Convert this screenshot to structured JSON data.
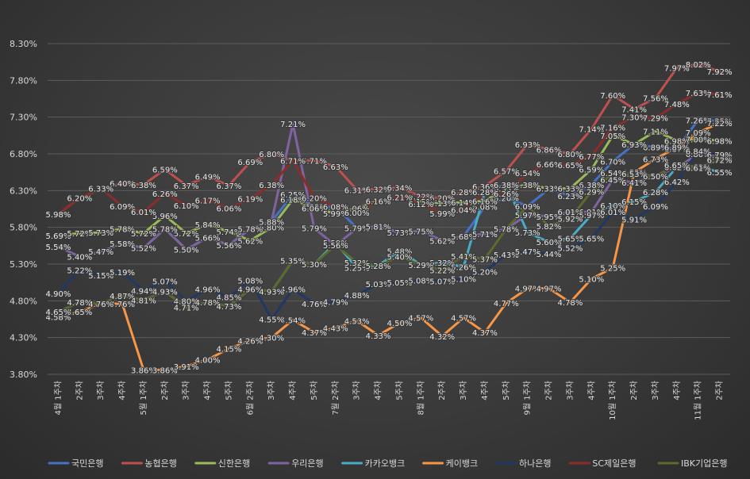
{
  "chart_data": {
    "type": "line",
    "title": "",
    "xlabel": "",
    "ylabel": "",
    "ylim": [
      3.8,
      8.3
    ],
    "yticks": [
      "8.30%",
      "7.80%",
      "7.30%",
      "6.80%",
      "6.30%",
      "5.80%",
      "5.30%",
      "4.80%",
      "4.30%",
      "3.80%"
    ],
    "grid": true,
    "legend_position": "bottom",
    "categories": [
      "4월 1주차",
      "2주차",
      "3주차",
      "4주차",
      "5월 1주차",
      "2주차",
      "3주차",
      "4주차",
      "5주차",
      "6월 2주차",
      "3주차",
      "4주차",
      "5주차",
      "7월 2주차",
      "3주차",
      "4주차",
      "5주차",
      "8월 1주차",
      "2주차",
      "3주차",
      "4주차",
      "5주차",
      "9월 1주차",
      "2주차",
      "3주차",
      "4주차",
      "10월 1주차",
      "2주차",
      "3주차",
      "4주차",
      "11월 1주차",
      "2주차"
    ],
    "series": [
      {
        "name": "국민은행",
        "color": "#4472c4",
        "values": [
          5.54,
          5.4,
          5.47,
          5.58,
          5.52,
          5.78,
          5.5,
          5.66,
          5.56,
          5.78,
          5.88,
          6.25,
          6.08,
          6.08,
          5.79,
          5.81,
          5.73,
          5.75,
          5.62,
          5.68,
          6.08,
          6.2,
          6.09,
          6.32,
          6.23,
          6.38,
          6.7,
          6.93,
          6.89,
          6.87,
          7.26,
          7.25
        ]
      },
      {
        "name": "농협은행",
        "color": "#c0504d",
        "values": [
          5.98,
          6.2,
          6.32,
          6.4,
          6.38,
          6.59,
          6.37,
          6.49,
          6.37,
          6.69,
          6.8,
          6.71,
          6.71,
          6.63,
          6.31,
          6.32,
          6.34,
          6.22,
          6.2,
          6.28,
          6.36,
          6.57,
          6.93,
          6.86,
          6.8,
          7.14,
          7.6,
          7.41,
          7.56,
          7.97,
          8.02,
          7.92
        ]
      },
      {
        "name": "신한은행",
        "color": "#9bbb59",
        "values": [
          5.69,
          5.72,
          5.73,
          5.78,
          5.72,
          5.96,
          5.72,
          5.84,
          5.74,
          5.62,
          5.8,
          6.18,
          6.06,
          5.99,
          6.06,
          6.16,
          6.21,
          6.15,
          6.13,
          6.14,
          6.16,
          6.33,
          6.38,
          6.33,
          6.33,
          6.59,
          7.05,
          6.93,
          7.11,
          6.98,
          7.0,
          6.98
        ]
      },
      {
        "name": "우리은행",
        "color": "#8064a2",
        "values": [
          5.54,
          5.4,
          5.47,
          5.58,
          5.52,
          5.78,
          5.5,
          5.66,
          5.56,
          5.78,
          5.88,
          7.21,
          5.79,
          5.55,
          5.79,
          5.81,
          5.73,
          5.75,
          5.62,
          5.68,
          5.71,
          5.78,
          5.97,
          5.95,
          6.01,
          6.01,
          6.45,
          6.41,
          6.5,
          6.61,
          6.8,
          6.76
        ]
      },
      {
        "name": "카카오뱅크",
        "color": "#4bacc6",
        "values": [
          4.65,
          4.78,
          4.76,
          4.87,
          4.81,
          4.93,
          4.71,
          4.78,
          4.73,
          4.96,
          4.93,
          5.35,
          5.3,
          5.59,
          5.25,
          5.28,
          5.48,
          5.29,
          5.32,
          5.26,
          6.28,
          6.38,
          5.73,
          5.6,
          5.65,
          5.97,
          6.1,
          6.15,
          6.28,
          6.62,
          6.63,
          6.55
        ]
      },
      {
        "name": "케이뱅크",
        "color": "#f79646",
        "values": [
          4.58,
          4.65,
          4.76,
          4.76,
          3.86,
          3.86,
          3.91,
          4.0,
          4.15,
          4.26,
          4.3,
          4.54,
          4.37,
          4.43,
          4.53,
          4.33,
          4.5,
          4.57,
          4.32,
          4.57,
          4.37,
          4.77,
          4.97,
          4.97,
          4.78,
          5.1,
          5.25,
          6.55,
          6.73,
          6.89,
          7.09,
          7.22
        ]
      },
      {
        "name": "하나은행",
        "color": "#1f3864",
        "values": [
          4.9,
          5.22,
          5.15,
          5.19,
          4.94,
          5.07,
          4.8,
          4.96,
          4.85,
          5.08,
          4.55,
          4.96,
          4.76,
          4.79,
          4.88,
          5.03,
          5.05,
          5.08,
          5.07,
          5.1,
          5.2,
          5.43,
          5.47,
          5.44,
          5.52,
          5.65,
          6.01,
          5.91,
          6.09,
          6.42,
          6.84,
          6.79
        ]
      },
      {
        "name": "SC제일은행",
        "color": "#8b2d2a",
        "values": [
          5.98,
          6.2,
          6.33,
          6.09,
          6.01,
          6.26,
          6.1,
          6.17,
          6.06,
          6.19,
          6.38,
          6.71,
          6.2,
          6.08,
          6.0,
          6.16,
          6.21,
          6.12,
          5.99,
          6.04,
          6.28,
          6.26,
          6.54,
          6.66,
          6.65,
          6.77,
          7.16,
          7.3,
          7.29,
          7.48,
          7.63,
          7.61
        ]
      },
      {
        "name": "IBK기업은행",
        "color": "#5a6b2c",
        "values": [
          4.65,
          4.78,
          4.76,
          4.87,
          4.81,
          4.93,
          4.71,
          4.78,
          4.73,
          4.96,
          4.93,
          5.35,
          5.3,
          5.56,
          5.32,
          5.28,
          5.4,
          5.29,
          5.22,
          5.41,
          5.37,
          5.78,
          6.09,
          5.82,
          5.92,
          6.29,
          6.54,
          6.53,
          6.5,
          6.65,
          6.61,
          6.72
        ]
      }
    ]
  }
}
